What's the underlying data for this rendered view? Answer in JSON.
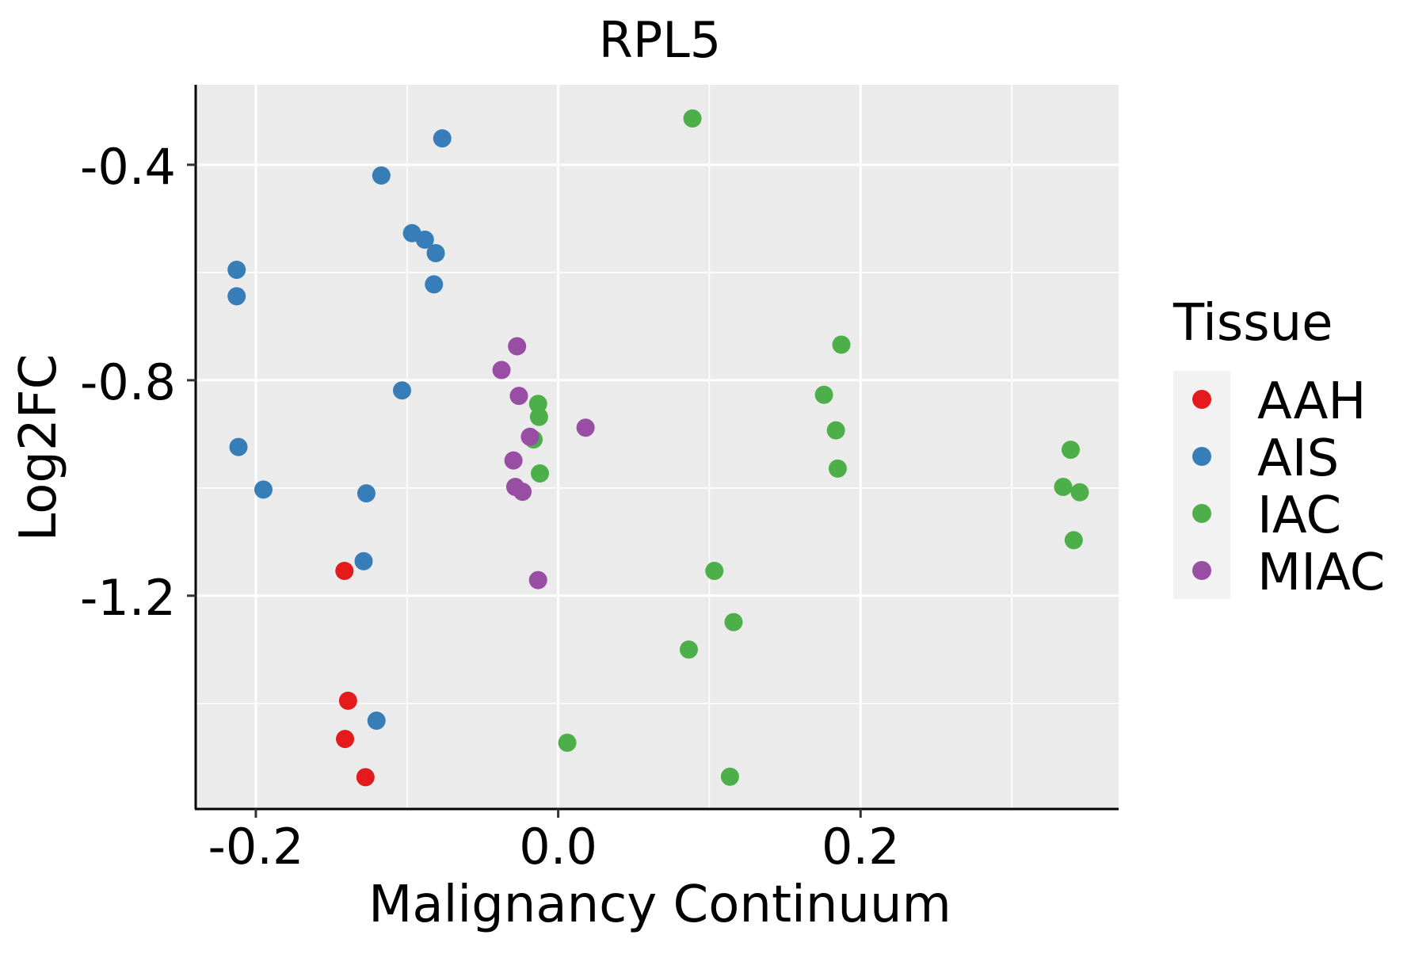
{
  "chart_data": {
    "type": "scatter",
    "title": "RPL5",
    "xlabel": "Malignancy Continuum",
    "ylabel": "Log2FC",
    "xlim": [
      -0.2398,
      0.3707
    ],
    "ylim": [
      -1.596,
      -0.2515
    ],
    "x_ticks": [
      -0.2,
      0.0,
      0.2
    ],
    "x_tick_labels": [
      "-0.2",
      "0.0",
      "0.2"
    ],
    "x_minor": [
      -0.1,
      0.1,
      0.3
    ],
    "y_ticks": [
      -0.4,
      -0.8,
      -1.2
    ],
    "y_tick_labels": [
      "-0.4",
      "-0.8",
      "-1.2"
    ],
    "y_minor": [
      -0.6,
      -1.0,
      -1.4
    ],
    "grid": true,
    "legend": {
      "title": "Tissue",
      "placement": "right"
    },
    "series": [
      {
        "name": "AAH",
        "color": "#E41A1C",
        "points": [
          [
            -0.1414,
            -1.154
          ],
          [
            -0.139,
            -1.395
          ],
          [
            -0.141,
            -1.466
          ],
          [
            -0.1275,
            -1.537
          ]
        ]
      },
      {
        "name": "AIS",
        "color": "#377EB8",
        "points": [
          [
            -0.0767,
            -0.351
          ],
          [
            -0.117,
            -0.42
          ],
          [
            -0.0967,
            -0.527
          ],
          [
            -0.0882,
            -0.539
          ],
          [
            -0.081,
            -0.564
          ],
          [
            -0.0822,
            -0.622
          ],
          [
            -0.2127,
            -0.595
          ],
          [
            -0.2127,
            -0.644
          ],
          [
            -0.1033,
            -0.819
          ],
          [
            -0.2115,
            -0.924
          ],
          [
            -0.195,
            -1.003
          ],
          [
            -0.1269,
            -1.01
          ],
          [
            -0.1287,
            -1.136
          ],
          [
            -0.1202,
            -1.432
          ]
        ]
      },
      {
        "name": "IAC",
        "color": "#4DAF4A",
        "points": [
          [
            0.0888,
            -0.314
          ],
          [
            0.1873,
            -0.734
          ],
          [
            0.1758,
            -0.827
          ],
          [
            0.1837,
            -0.893
          ],
          [
            0.1849,
            -0.964
          ],
          [
            0.339,
            -0.929
          ],
          [
            0.334,
            -0.998
          ],
          [
            0.345,
            -1.008
          ],
          [
            0.341,
            -1.097
          ],
          [
            -0.0133,
            -0.844
          ],
          [
            -0.0127,
            -0.868
          ],
          [
            -0.0163,
            -0.91
          ],
          [
            -0.0121,
            -0.973
          ],
          [
            0.1033,
            -1.154
          ],
          [
            0.116,
            -1.249
          ],
          [
            0.0864,
            -1.3
          ],
          [
            0.006,
            -1.473
          ],
          [
            0.1136,
            -1.536
          ]
        ]
      },
      {
        "name": "MIAC",
        "color": "#984EA3",
        "points": [
          [
            -0.0272,
            -0.737
          ],
          [
            -0.0375,
            -0.781
          ],
          [
            -0.026,
            -0.829
          ],
          [
            0.0181,
            -0.888
          ],
          [
            -0.0187,
            -0.905
          ],
          [
            -0.0296,
            -0.949
          ],
          [
            -0.0284,
            -0.998
          ],
          [
            -0.0236,
            -1.007
          ],
          [
            -0.0133,
            -1.171
          ]
        ]
      }
    ]
  }
}
